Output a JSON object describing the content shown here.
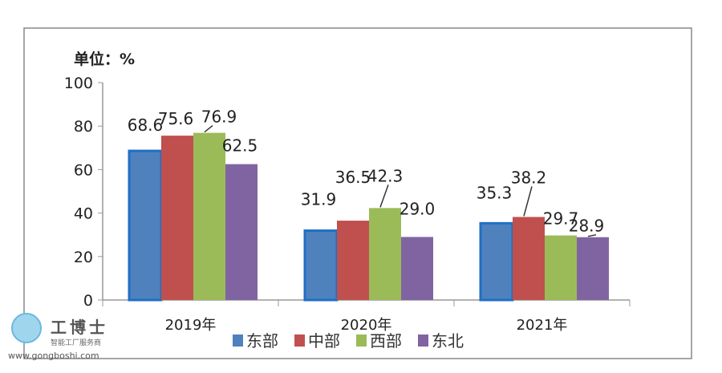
{
  "chart_data": {
    "type": "bar",
    "unit_label": "单位：%",
    "categories": [
      "2019年",
      "2020年",
      "2021年"
    ],
    "series": [
      {
        "name": "东部",
        "color": "#4f81bd",
        "values": [
          68.6,
          31.9,
          35.3
        ]
      },
      {
        "name": "中部",
        "color": "#c0504d",
        "values": [
          75.6,
          36.5,
          38.2
        ]
      },
      {
        "name": "西部",
        "color": "#9bbb59",
        "values": [
          76.9,
          42.3,
          29.7
        ]
      },
      {
        "name": "东北",
        "color": "#8064a2",
        "values": [
          62.5,
          29.0,
          28.9
        ]
      }
    ],
    "data_labels": [
      [
        "68.6",
        "31.9",
        "35.3"
      ],
      [
        "75.6",
        "36.5",
        "38.2"
      ],
      [
        "76.9",
        "42.3",
        "29.7"
      ],
      [
        "62.5",
        "29.0",
        "28.9"
      ]
    ],
    "ylim": [
      0,
      100
    ],
    "yticks": [
      "0",
      "20",
      "40",
      "60",
      "80",
      "100"
    ],
    "grid": false,
    "legend_position": "bottom"
  },
  "watermark": {
    "brand": "工博士",
    "tagline": "智能工厂服务商",
    "url": "www.gongboshi.com"
  }
}
